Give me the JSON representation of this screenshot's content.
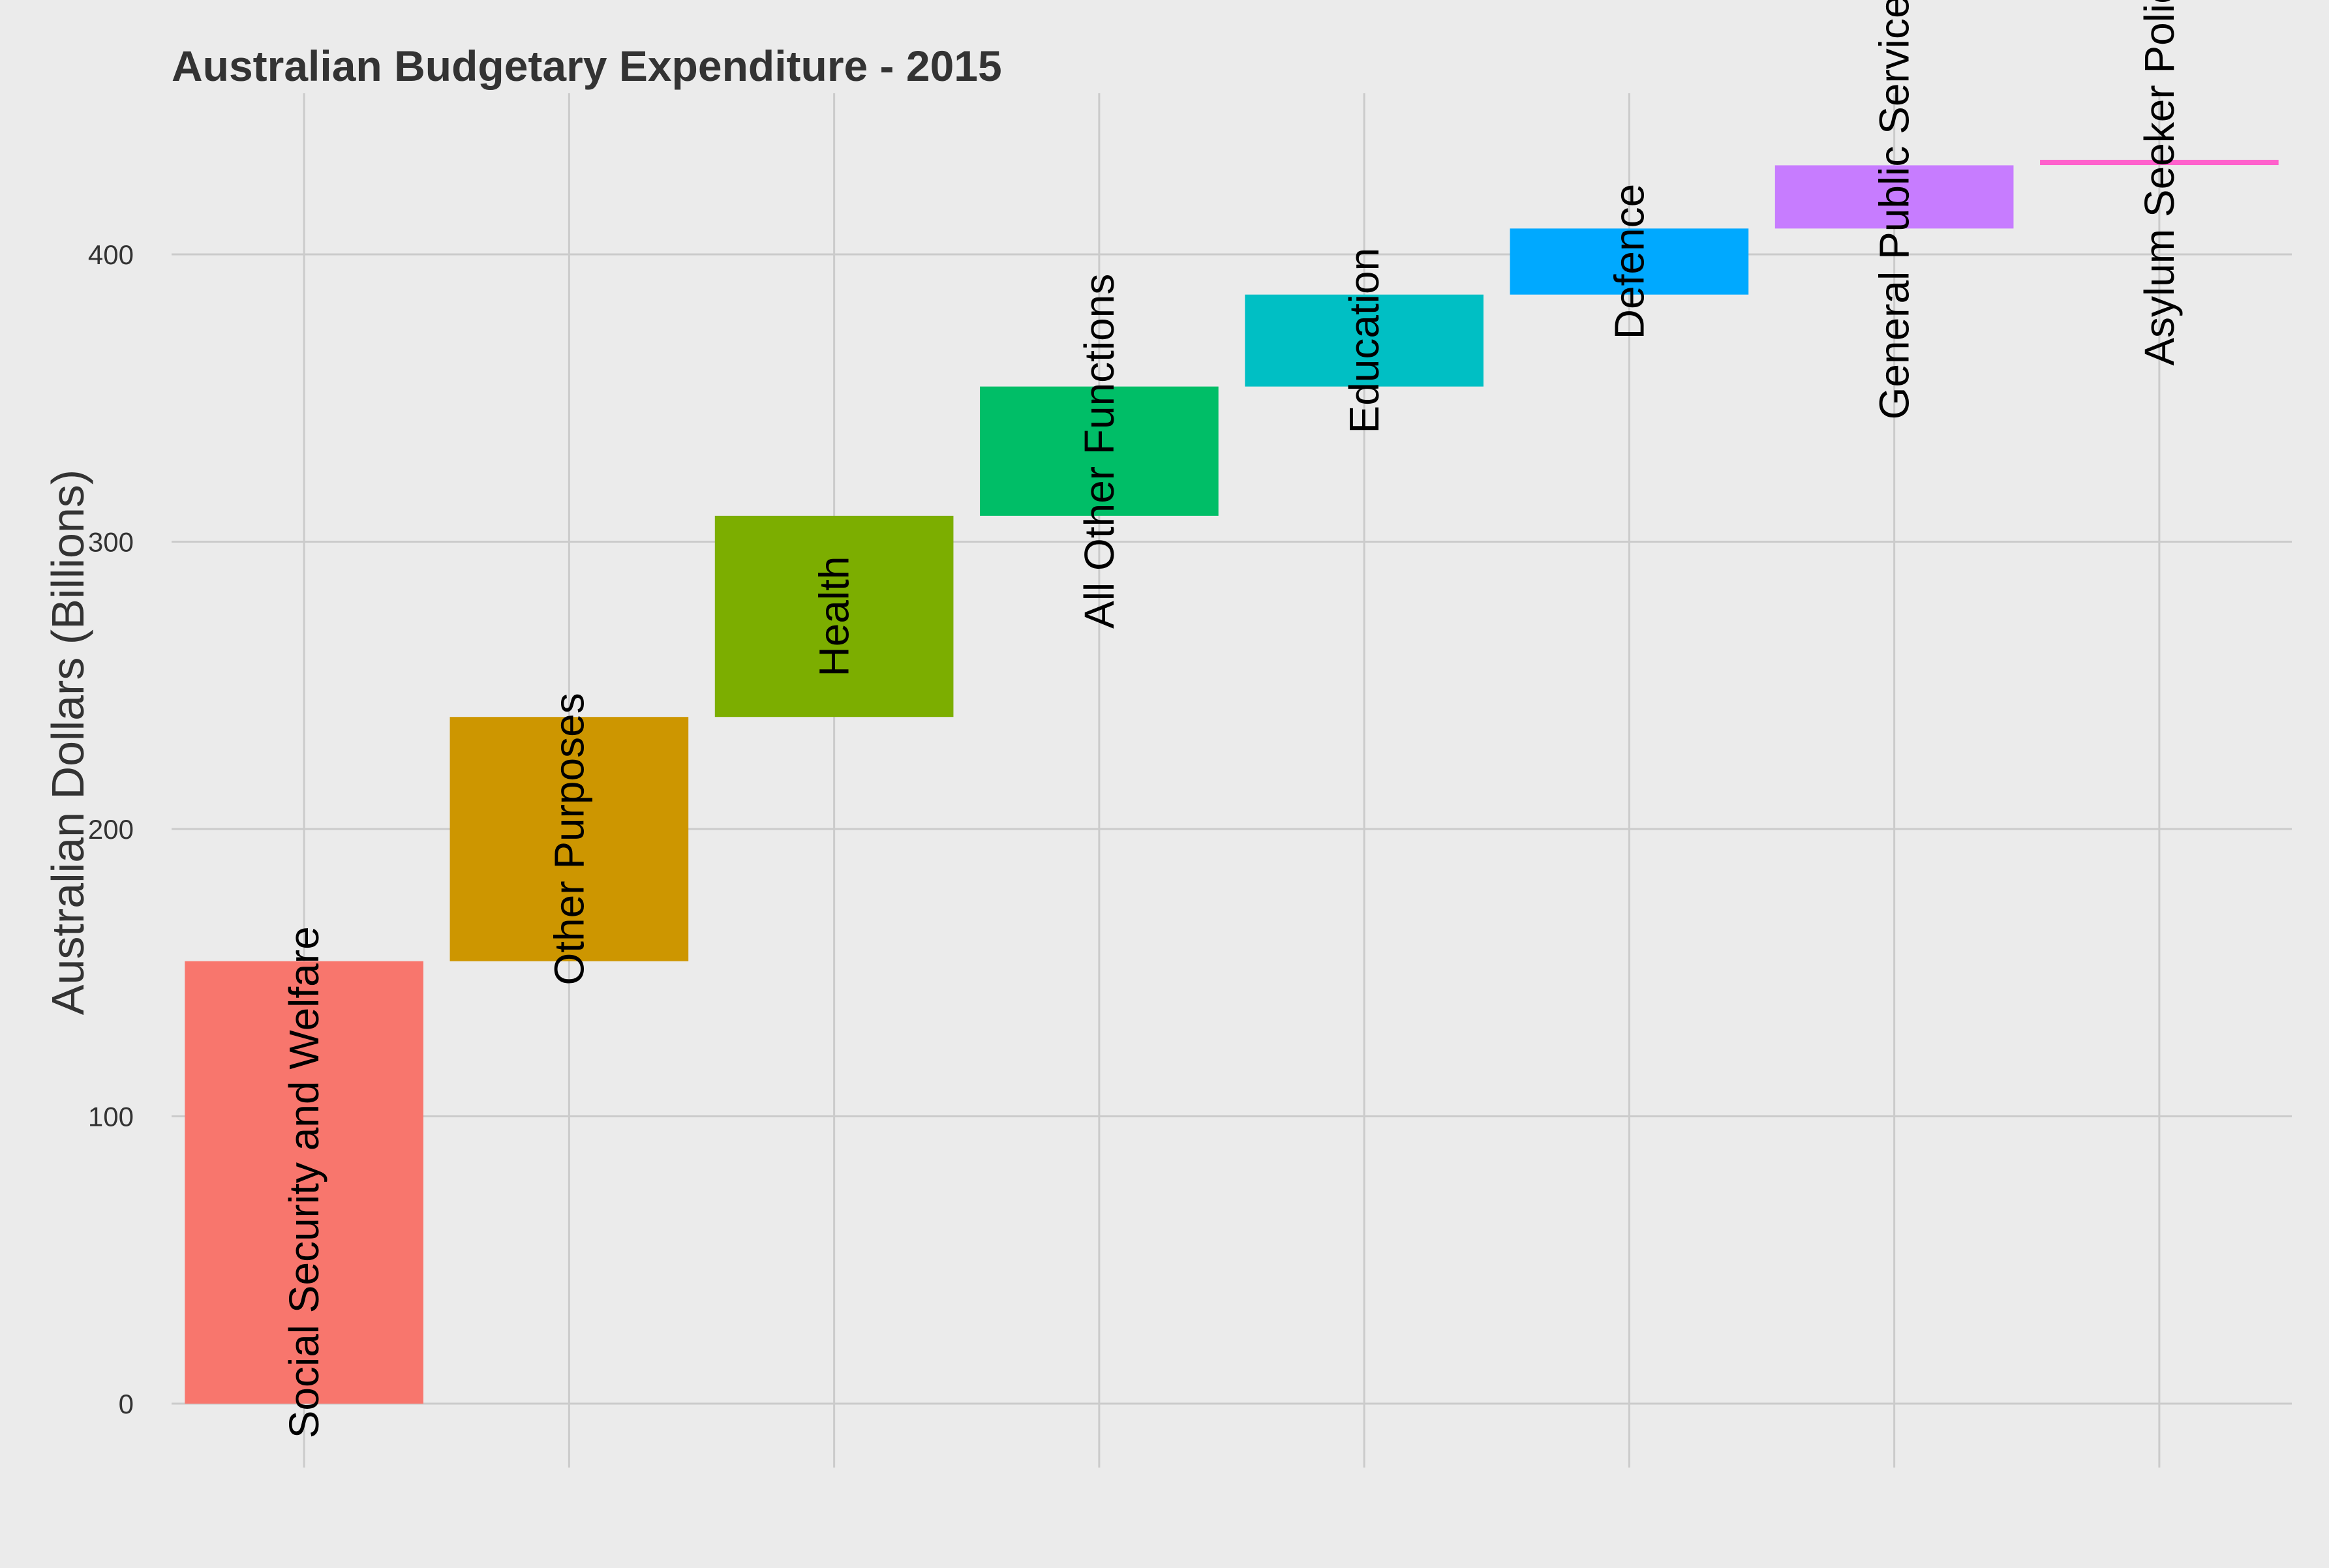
{
  "chart_data": {
    "type": "bar",
    "subtype": "waterfall",
    "title": "Australian Budgetary Expenditure - 2015",
    "xlabel": "",
    "ylabel": "Australian Dollars (Billions)",
    "ylim": [
      0,
      440
    ],
    "yticks": [
      "0",
      "100",
      "200",
      "300",
      "400"
    ],
    "grid": true,
    "legend": "none",
    "categories": [
      "Social Security and Welfare",
      "Other Purposes",
      "Health",
      "All Other Functions",
      "Education",
      "Defence",
      "General Public Services",
      "Asylum Seeker Policy"
    ],
    "values": [
      154,
      85,
      70,
      45,
      32,
      23,
      22,
      1
    ],
    "starts": [
      0,
      154,
      239,
      309,
      354,
      386,
      409,
      431
    ],
    "ends": [
      154,
      239,
      309,
      354,
      386,
      409,
      431,
      432
    ],
    "colors": [
      "#F8766D",
      "#CD9600",
      "#7CAE00",
      "#00BE67",
      "#00BFC4",
      "#00A9FF",
      "#C77CFF",
      "#FF61CC"
    ]
  }
}
